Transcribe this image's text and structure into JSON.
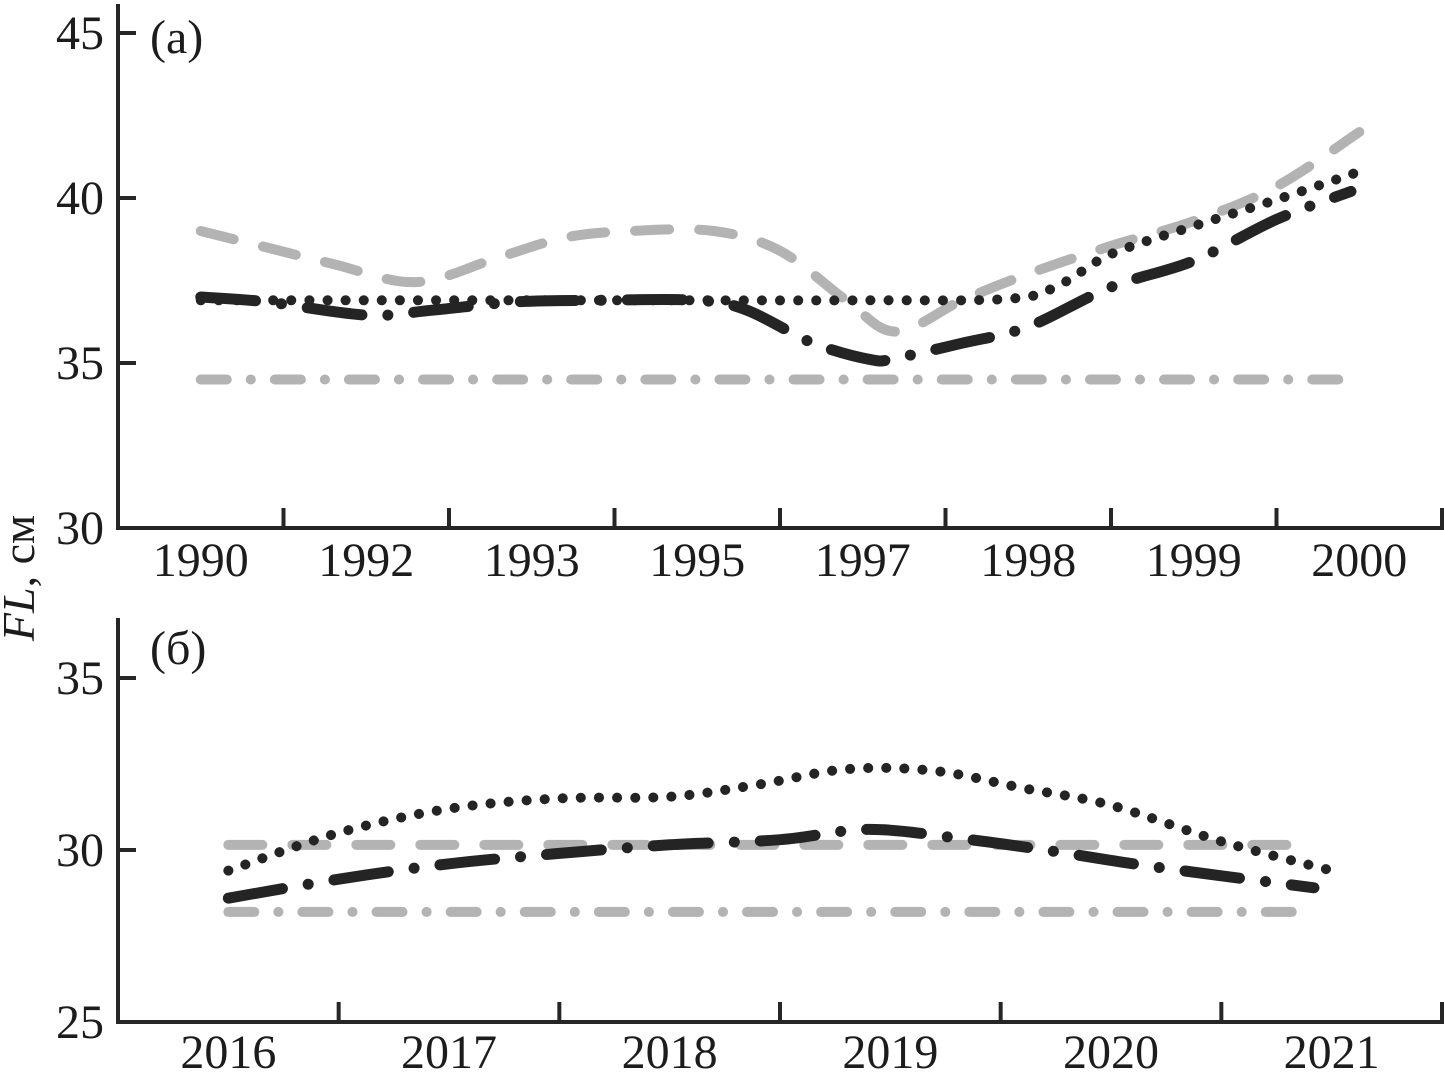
{
  "figure": {
    "ylabel_italic": "FL",
    "ylabel_rest": ", см",
    "background_color": "#ffffff",
    "axis_color": "#262626",
    "text_color": "#1c1c1c",
    "black_line_color": "#242424",
    "gray_line_color": "#b3b3b3"
  },
  "chart_data": [
    {
      "type": "line",
      "panel_label": "(а)",
      "title": "",
      "xlabel": "",
      "ylabel": "FL, см",
      "grid": false,
      "legend": "none",
      "categories": [
        "1990",
        "1992",
        "1993",
        "1995",
        "1997",
        "1998",
        "1999",
        "2000"
      ],
      "y_ticks": [
        45,
        40,
        35,
        30
      ],
      "ylim": [
        29.9,
        45.9
      ],
      "series": [
        {
          "name": "gray-dashed-line",
          "style": "long-dash",
          "color": "#b3b3b3",
          "x": [
            0,
            0.4,
            0.8,
            1.3,
            1.8,
            2.2,
            2.6,
            3.1,
            3.5,
            3.9,
            4.2,
            4.6,
            5.0,
            5.5,
            6.0,
            6.5,
            7.0
          ],
          "values": [
            39.0,
            38.5,
            38.0,
            37.45,
            38.2,
            38.8,
            39.0,
            39.0,
            38.4,
            36.9,
            35.95,
            36.9,
            37.7,
            38.55,
            39.3,
            40.35,
            42.0
          ]
        },
        {
          "name": "gray-dash-dot-line",
          "style": "dash-dot-fine",
          "color": "#b3b3b3",
          "x": [
            0,
            7
          ],
          "values": [
            34.5,
            34.5
          ]
        },
        {
          "name": "black-dotted-line",
          "style": "dotted",
          "color": "#242424",
          "x": [
            0,
            1,
            2,
            3,
            4,
            4.9,
            5.2,
            5.5,
            6.0,
            6.5,
            7.0
          ],
          "values": [
            36.9,
            36.9,
            36.9,
            36.9,
            36.9,
            36.95,
            37.4,
            38.3,
            39.15,
            39.95,
            40.8
          ]
        },
        {
          "name": "black-dash-dot-line",
          "style": "dash-dot",
          "color": "#242424",
          "x": [
            0,
            0.4,
            1.0,
            1.4,
            1.9,
            2.4,
            3.0,
            3.3,
            3.7,
            4.05,
            4.2,
            4.6,
            5.0,
            5.5,
            6.0,
            6.5,
            6.95
          ],
          "values": [
            37.0,
            36.85,
            36.45,
            36.6,
            36.85,
            36.9,
            36.9,
            36.6,
            35.6,
            35.1,
            35.15,
            35.6,
            36.1,
            37.3,
            38.1,
            39.35,
            40.2
          ]
        }
      ]
    },
    {
      "type": "line",
      "panel_label": "(б)",
      "title": "",
      "xlabel": "",
      "ylabel": "FL, см",
      "grid": false,
      "legend": "none",
      "categories": [
        "2016",
        "2017",
        "2018",
        "2019",
        "2020",
        "2021"
      ],
      "y_ticks": [
        35,
        30,
        25
      ],
      "ylim": [
        25,
        36.8
      ],
      "series": [
        {
          "name": "gray-dashed-line",
          "style": "long-dash",
          "color": "#b3b3b3",
          "x": [
            0,
            4.92
          ],
          "values": [
            30.15,
            30.15
          ]
        },
        {
          "name": "gray-dash-dot-line",
          "style": "dash-dot-fine",
          "color": "#b3b3b3",
          "x": [
            0,
            4.85
          ],
          "values": [
            28.2,
            28.2
          ]
        },
        {
          "name": "black-dotted-line",
          "style": "dotted",
          "color": "#242424",
          "x": [
            0,
            0.5,
            1.0,
            1.5,
            2.0,
            2.4,
            2.8,
            3.2,
            3.6,
            4.0,
            4.5,
            5.0
          ],
          "values": [
            29.4,
            30.5,
            31.2,
            31.5,
            31.55,
            31.9,
            32.35,
            32.3,
            31.8,
            31.3,
            30.25,
            29.4
          ]
        },
        {
          "name": "black-dash-dot-line",
          "style": "dash-dot",
          "color": "#242424",
          "x": [
            0,
            0.5,
            1.0,
            1.5,
            2.0,
            2.5,
            2.9,
            3.3,
            3.7,
            4.1,
            4.5,
            4.92
          ],
          "values": [
            28.6,
            29.15,
            29.6,
            29.9,
            30.15,
            30.3,
            30.6,
            30.35,
            30.0,
            29.6,
            29.25,
            28.9
          ]
        }
      ]
    }
  ]
}
